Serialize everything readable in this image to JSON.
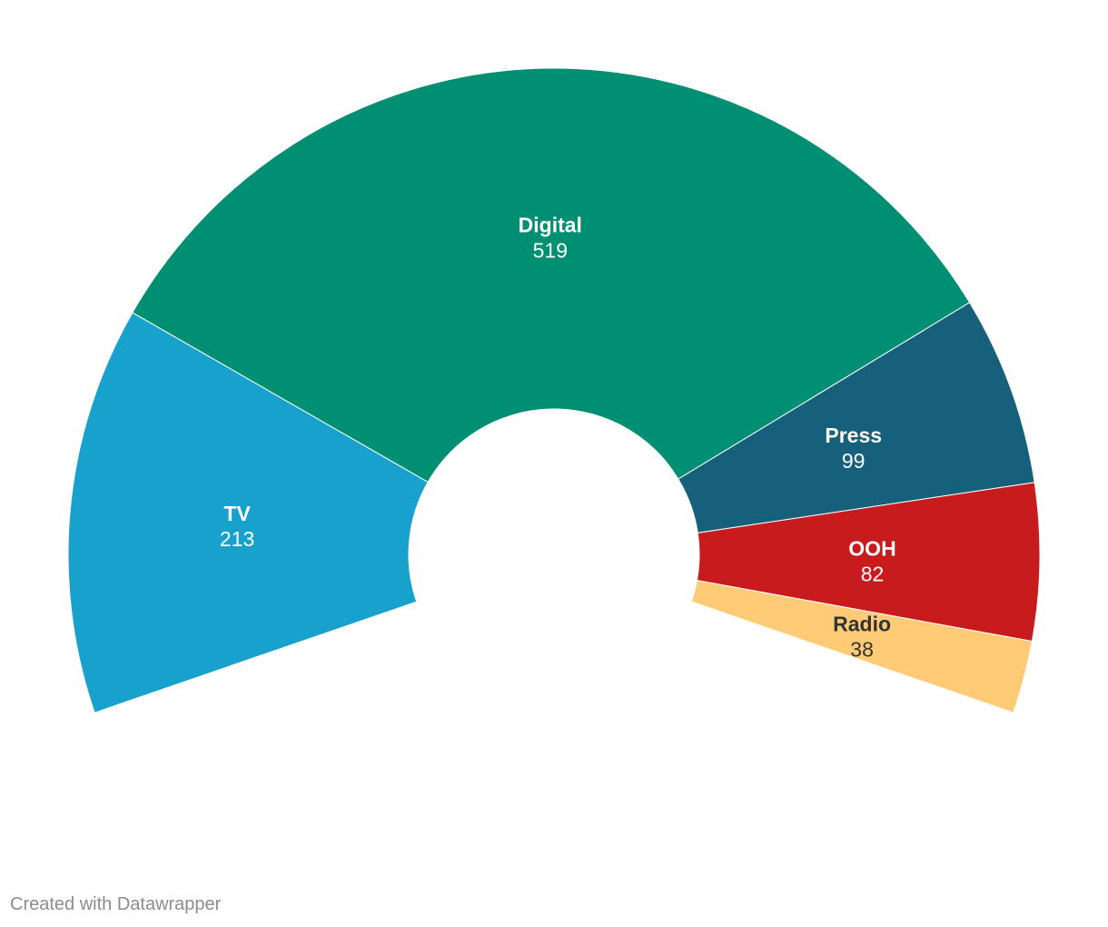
{
  "chart_data": {
    "type": "pie",
    "variant": "partial-donut",
    "title": "",
    "categories": [
      "TV",
      "Digital",
      "Press",
      "OOH",
      "Radio"
    ],
    "values": [
      213,
      519,
      99,
      82,
      38
    ],
    "colors": [
      "#19a1cd",
      "#008f73",
      "#17607b",
      "#c71b1e",
      "#ffcb77"
    ],
    "label_colors": [
      "#ffffff",
      "#ffffff",
      "#ffffff",
      "#ffffff",
      "#333333"
    ],
    "legend": "none"
  },
  "footer": {
    "credit": "Created with Datawrapper"
  }
}
